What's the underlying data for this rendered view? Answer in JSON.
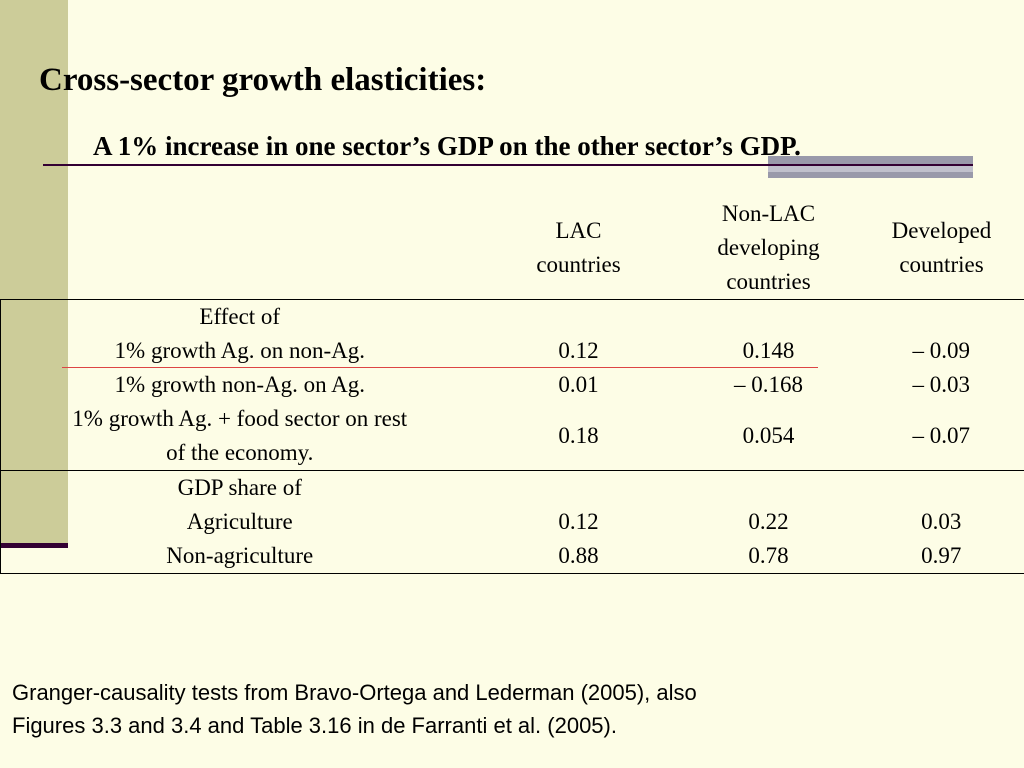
{
  "title": "Cross-sector growth elasticities:",
  "subtitle": "A 1% increase in one sector’s GDP on the other sector’s GDP.",
  "table": {
    "headers": [
      [
        "LAC",
        "countries"
      ],
      [
        "Non-LAC",
        "developing",
        "countries"
      ],
      [
        "Developed",
        "countries"
      ]
    ],
    "group1": {
      "label": "Effect of",
      "rows": [
        {
          "label": "1% growth Ag. on non-Ag.",
          "lac": "0.12",
          "nonlac": "0.148",
          "dev": "– 0.09"
        },
        {
          "label": "1% growth non-Ag. on Ag.",
          "lac": "0.01",
          "nonlac": "– 0.168",
          "dev": "– 0.03"
        },
        {
          "label_line1": "1% growth Ag. + food sector on rest",
          "label_line2": "of the economy.",
          "lac": "0.18",
          "nonlac": "0.054",
          "dev": "– 0.07"
        }
      ]
    },
    "group2": {
      "label": "GDP share of",
      "rows": [
        {
          "label": "Agriculture",
          "lac": "0.12",
          "nonlac": "0.22",
          "dev": "0.03"
        },
        {
          "label": "Non-agriculture",
          "lac": "0.88",
          "nonlac": "0.78",
          "dev": "0.97"
        }
      ]
    }
  },
  "footnote": {
    "line1": "Granger-causality tests from Bravo-Ortega and Lederman (2005), also",
    "line2": "Figures 3.3 and 3.4 and Table 3.16  in de Farranti et al. (2005)."
  }
}
